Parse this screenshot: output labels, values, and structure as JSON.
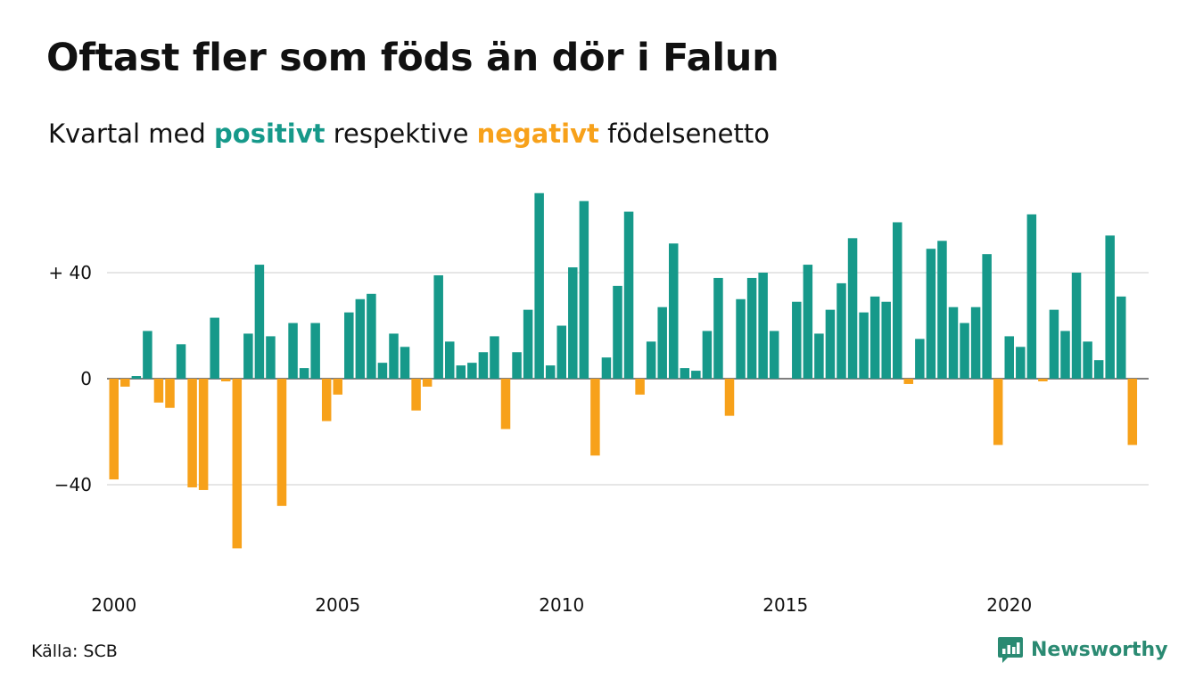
{
  "title": "Oftast fler som föds än dör i Falun",
  "subtitle": {
    "prefix": "Kvartal med",
    "positive_word": "positivt",
    "middle": "respektive",
    "negative_word": "negativt",
    "suffix": "födelsenetto"
  },
  "source": "Källa: SCB",
  "logo": {
    "text": "Newsworthy",
    "icon": "newsworthy-chart-bubble-icon"
  },
  "colors": {
    "positive": "#16998a",
    "negative": "#f7a11a",
    "grid": "#dedede",
    "text": "#111111",
    "logo": "#2a8a72"
  },
  "chart_data": {
    "type": "bar",
    "xlabel": "",
    "ylabel": "",
    "ylim": [
      -65,
      70
    ],
    "grid": true,
    "yticks": [
      {
        "value": 40,
        "label": "+ 40"
      },
      {
        "value": 0,
        "label": "0"
      },
      {
        "value": -40,
        "label": "−40"
      }
    ],
    "xticks": [
      {
        "year": 2000,
        "label": "2000"
      },
      {
        "year": 2005,
        "label": "2005"
      },
      {
        "year": 2010,
        "label": "2010"
      },
      {
        "year": 2015,
        "label": "2015"
      },
      {
        "year": 2020,
        "label": "2020"
      }
    ],
    "start_year": 2000,
    "start_quarter": 1,
    "values": [
      -38,
      -3,
      1,
      18,
      -9,
      -11,
      13,
      -41,
      -42,
      23,
      -1,
      -64,
      17,
      43,
      16,
      -48,
      21,
      4,
      21,
      -16,
      -6,
      25,
      30,
      32,
      6,
      17,
      12,
      -12,
      -3,
      39,
      14,
      5,
      6,
      10,
      16,
      -19,
      10,
      26,
      70,
      5,
      20,
      42,
      67,
      -29,
      8,
      35,
      63,
      -6,
      14,
      27,
      51,
      4,
      3,
      18,
      38,
      -14,
      30,
      38,
      40,
      18,
      0,
      29,
      43,
      17,
      26,
      36,
      53,
      25,
      31,
      29,
      59,
      -2,
      15,
      49,
      52,
      27,
      21,
      27,
      47,
      -25,
      16,
      12,
      62,
      -1,
      26,
      18,
      40,
      14,
      7,
      54,
      31,
      -25
    ]
  }
}
